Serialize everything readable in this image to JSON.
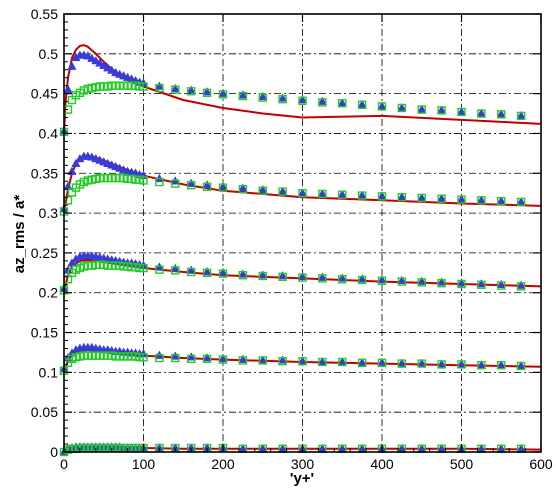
{
  "chart_data": {
    "type": "scatter",
    "title": "",
    "xlabel": "'y+'",
    "ylabel": "az_rms / a*",
    "xlim": [
      0,
      600
    ],
    "ylim": [
      0,
      0.55
    ],
    "xticks": [
      0,
      100,
      200,
      300,
      400,
      500,
      600
    ],
    "yticks": [
      0,
      0.05,
      0.1,
      0.15,
      0.2,
      0.25,
      0.3,
      0.35,
      0.4,
      0.45,
      0.5,
      0.55
    ],
    "grid": true,
    "legend": "none",
    "colors": {
      "line": "#c00000",
      "triangle": "#3a3ad6",
      "square": "#22cc22"
    },
    "series": [
      {
        "group": 1,
        "kind": "line",
        "x": [
          0,
          5,
          10,
          20,
          30,
          40,
          60,
          80,
          100,
          150,
          200,
          300,
          400,
          500,
          600
        ],
        "y": [
          0.0,
          0.003,
          0.004,
          0.005,
          0.005,
          0.005,
          0.005,
          0.005,
          0.005,
          0.004,
          0.004,
          0.004,
          0.004,
          0.004,
          0.003
        ]
      },
      {
        "group": 1,
        "kind": "triangle",
        "x": [
          0,
          5,
          10,
          15,
          20,
          25,
          30,
          35,
          40,
          45,
          50,
          55,
          60,
          65,
          70,
          75,
          80,
          85,
          90,
          95,
          100,
          120,
          140,
          160,
          180,
          200,
          225,
          250,
          275,
          300,
          325,
          350,
          375,
          400,
          425,
          450,
          475,
          500,
          525,
          550,
          575
        ],
        "y": [
          0.0,
          0.004,
          0.005,
          0.006,
          0.006,
          0.006,
          0.006,
          0.006,
          0.006,
          0.006,
          0.006,
          0.006,
          0.006,
          0.006,
          0.006,
          0.005,
          0.005,
          0.005,
          0.005,
          0.005,
          0.005,
          0.005,
          0.005,
          0.005,
          0.005,
          0.005,
          0.004,
          0.004,
          0.004,
          0.004,
          0.004,
          0.004,
          0.004,
          0.004,
          0.004,
          0.004,
          0.004,
          0.004,
          0.004,
          0.004,
          0.004
        ]
      },
      {
        "group": 1,
        "kind": "square",
        "x": [
          0,
          5,
          10,
          15,
          20,
          25,
          30,
          35,
          40,
          45,
          50,
          55,
          60,
          65,
          70,
          75,
          80,
          85,
          90,
          95,
          100,
          120,
          140,
          160,
          180,
          200,
          225,
          250,
          275,
          300,
          325,
          350,
          375,
          400,
          425,
          450,
          475,
          500,
          525,
          550,
          575
        ],
        "y": [
          0.0,
          0.003,
          0.004,
          0.004,
          0.005,
          0.005,
          0.005,
          0.005,
          0.005,
          0.005,
          0.005,
          0.005,
          0.005,
          0.005,
          0.005,
          0.005,
          0.005,
          0.005,
          0.005,
          0.005,
          0.005,
          0.005,
          0.005,
          0.005,
          0.005,
          0.005,
          0.004,
          0.004,
          0.004,
          0.004,
          0.004,
          0.004,
          0.004,
          0.004,
          0.004,
          0.004,
          0.004,
          0.004,
          0.004,
          0.004,
          0.004
        ]
      },
      {
        "group": 2,
        "kind": "line",
        "x": [
          0,
          5,
          10,
          20,
          30,
          40,
          60,
          80,
          100,
          150,
          200,
          300,
          400,
          500,
          600
        ],
        "y": [
          0.1,
          0.115,
          0.122,
          0.127,
          0.128,
          0.127,
          0.125,
          0.123,
          0.121,
          0.118,
          0.116,
          0.113,
          0.111,
          0.109,
          0.107
        ]
      },
      {
        "group": 2,
        "kind": "triangle",
        "x": [
          0,
          5,
          10,
          15,
          20,
          25,
          30,
          35,
          40,
          45,
          50,
          55,
          60,
          65,
          70,
          75,
          80,
          85,
          90,
          95,
          100,
          120,
          140,
          160,
          180,
          200,
          225,
          250,
          275,
          300,
          325,
          350,
          375,
          400,
          425,
          450,
          475,
          500,
          525,
          550,
          575
        ],
        "y": [
          0.104,
          0.118,
          0.124,
          0.128,
          0.13,
          0.131,
          0.131,
          0.131,
          0.13,
          0.129,
          0.128,
          0.128,
          0.127,
          0.126,
          0.126,
          0.125,
          0.125,
          0.124,
          0.124,
          0.123,
          0.123,
          0.121,
          0.12,
          0.119,
          0.118,
          0.117,
          0.116,
          0.115,
          0.115,
          0.114,
          0.113,
          0.113,
          0.112,
          0.112,
          0.111,
          0.111,
          0.11,
          0.11,
          0.109,
          0.109,
          0.108
        ]
      },
      {
        "group": 2,
        "kind": "square",
        "x": [
          0,
          5,
          10,
          15,
          20,
          25,
          30,
          35,
          40,
          45,
          50,
          55,
          60,
          65,
          70,
          75,
          80,
          85,
          90,
          95,
          100,
          120,
          140,
          160,
          180,
          200,
          225,
          250,
          275,
          300,
          325,
          350,
          375,
          400,
          425,
          450,
          475,
          500,
          525,
          550,
          575
        ],
        "y": [
          0.102,
          0.112,
          0.117,
          0.119,
          0.12,
          0.121,
          0.121,
          0.121,
          0.121,
          0.121,
          0.121,
          0.121,
          0.121,
          0.12,
          0.12,
          0.12,
          0.12,
          0.12,
          0.12,
          0.119,
          0.119,
          0.118,
          0.118,
          0.117,
          0.117,
          0.116,
          0.115,
          0.115,
          0.114,
          0.114,
          0.113,
          0.113,
          0.112,
          0.112,
          0.111,
          0.111,
          0.11,
          0.11,
          0.109,
          0.109,
          0.108
        ]
      },
      {
        "group": 3,
        "kind": "line",
        "x": [
          0,
          5,
          10,
          20,
          30,
          40,
          60,
          80,
          100,
          150,
          200,
          300,
          400,
          500,
          600
        ],
        "y": [
          0.2,
          0.222,
          0.233,
          0.24,
          0.241,
          0.24,
          0.237,
          0.234,
          0.231,
          0.226,
          0.222,
          0.218,
          0.214,
          0.211,
          0.208
        ]
      },
      {
        "group": 3,
        "kind": "triangle",
        "x": [
          0,
          5,
          10,
          15,
          20,
          25,
          30,
          35,
          40,
          45,
          50,
          55,
          60,
          65,
          70,
          75,
          80,
          85,
          90,
          95,
          100,
          120,
          140,
          160,
          180,
          200,
          225,
          250,
          275,
          300,
          325,
          350,
          375,
          400,
          425,
          450,
          475,
          500,
          525,
          550,
          575
        ],
        "y": [
          0.205,
          0.228,
          0.237,
          0.242,
          0.245,
          0.246,
          0.246,
          0.246,
          0.245,
          0.244,
          0.243,
          0.242,
          0.241,
          0.24,
          0.239,
          0.238,
          0.237,
          0.237,
          0.236,
          0.235,
          0.234,
          0.232,
          0.23,
          0.228,
          0.226,
          0.225,
          0.223,
          0.222,
          0.221,
          0.22,
          0.219,
          0.218,
          0.217,
          0.216,
          0.215,
          0.214,
          0.213,
          0.212,
          0.211,
          0.21,
          0.209
        ]
      },
      {
        "group": 3,
        "kind": "square",
        "x": [
          0,
          5,
          10,
          15,
          20,
          25,
          30,
          35,
          40,
          45,
          50,
          55,
          60,
          65,
          70,
          75,
          80,
          85,
          90,
          95,
          100,
          120,
          140,
          160,
          180,
          200,
          225,
          250,
          275,
          300,
          325,
          350,
          375,
          400,
          425,
          450,
          475,
          500,
          525,
          550,
          575
        ],
        "y": [
          0.203,
          0.217,
          0.225,
          0.229,
          0.231,
          0.233,
          0.234,
          0.234,
          0.235,
          0.235,
          0.235,
          0.234,
          0.234,
          0.234,
          0.234,
          0.233,
          0.233,
          0.232,
          0.232,
          0.231,
          0.231,
          0.229,
          0.228,
          0.226,
          0.225,
          0.224,
          0.222,
          0.221,
          0.22,
          0.219,
          0.218,
          0.217,
          0.216,
          0.215,
          0.214,
          0.213,
          0.212,
          0.211,
          0.21,
          0.209,
          0.208
        ]
      },
      {
        "group": 4,
        "kind": "line",
        "x": [
          0,
          5,
          10,
          15,
          20,
          30,
          40,
          60,
          80,
          100,
          150,
          200,
          300,
          400,
          500,
          600
        ],
        "y": [
          0.3,
          0.33,
          0.35,
          0.362,
          0.368,
          0.372,
          0.37,
          0.362,
          0.354,
          0.347,
          0.336,
          0.328,
          0.32,
          0.316,
          0.312,
          0.309
        ]
      },
      {
        "group": 4,
        "kind": "triangle",
        "x": [
          0,
          5,
          10,
          15,
          20,
          25,
          30,
          35,
          40,
          45,
          50,
          55,
          60,
          65,
          70,
          75,
          80,
          85,
          90,
          95,
          100,
          120,
          140,
          160,
          180,
          200,
          225,
          250,
          275,
          300,
          325,
          350,
          375,
          400,
          425,
          450,
          475,
          500,
          525,
          550,
          575
        ],
        "y": [
          0.305,
          0.333,
          0.352,
          0.362,
          0.368,
          0.371,
          0.371,
          0.37,
          0.368,
          0.366,
          0.364,
          0.362,
          0.36,
          0.358,
          0.356,
          0.354,
          0.352,
          0.351,
          0.35,
          0.348,
          0.347,
          0.343,
          0.34,
          0.337,
          0.335,
          0.333,
          0.331,
          0.329,
          0.327,
          0.325,
          0.324,
          0.323,
          0.322,
          0.321,
          0.32,
          0.319,
          0.318,
          0.317,
          0.316,
          0.315,
          0.314
        ]
      },
      {
        "group": 4,
        "kind": "square",
        "x": [
          0,
          5,
          10,
          15,
          20,
          25,
          30,
          35,
          40,
          45,
          50,
          55,
          60,
          65,
          70,
          75,
          80,
          85,
          90,
          95,
          100,
          120,
          140,
          160,
          180,
          200,
          225,
          250,
          275,
          300,
          325,
          350,
          375,
          400,
          425,
          450,
          475,
          500,
          525,
          550,
          575
        ],
        "y": [
          0.302,
          0.316,
          0.326,
          0.332,
          0.336,
          0.339,
          0.341,
          0.342,
          0.343,
          0.344,
          0.344,
          0.344,
          0.344,
          0.344,
          0.344,
          0.344,
          0.343,
          0.343,
          0.342,
          0.342,
          0.341,
          0.339,
          0.337,
          0.335,
          0.333,
          0.332,
          0.33,
          0.328,
          0.327,
          0.325,
          0.324,
          0.323,
          0.322,
          0.321,
          0.32,
          0.319,
          0.318,
          0.317,
          0.316,
          0.315,
          0.314
        ]
      },
      {
        "group": 5,
        "kind": "line",
        "x": [
          0,
          2,
          5,
          10,
          15,
          20,
          25,
          30,
          40,
          50,
          60,
          80,
          100,
          150,
          200,
          250,
          300,
          400,
          500,
          600
        ],
        "y": [
          0.4,
          0.44,
          0.47,
          0.495,
          0.505,
          0.51,
          0.511,
          0.509,
          0.5,
          0.49,
          0.481,
          0.468,
          0.459,
          0.442,
          0.432,
          0.425,
          0.42,
          0.422,
          0.417,
          0.412
        ]
      },
      {
        "group": 5,
        "kind": "triangle",
        "x": [
          0,
          5,
          10,
          15,
          20,
          25,
          30,
          35,
          40,
          45,
          50,
          55,
          60,
          65,
          70,
          75,
          80,
          85,
          90,
          95,
          100,
          120,
          140,
          160,
          180,
          200,
          225,
          250,
          275,
          300,
          325,
          350,
          375,
          400,
          425,
          450,
          475,
          500,
          525,
          550,
          575
        ],
        "y": [
          0.403,
          0.455,
          0.484,
          0.495,
          0.498,
          0.498,
          0.497,
          0.494,
          0.491,
          0.488,
          0.485,
          0.482,
          0.479,
          0.476,
          0.474,
          0.472,
          0.47,
          0.468,
          0.466,
          0.464,
          0.463,
          0.459,
          0.456,
          0.454,
          0.452,
          0.45,
          0.448,
          0.446,
          0.444,
          0.442,
          0.44,
          0.438,
          0.436,
          0.434,
          0.432,
          0.43,
          0.429,
          0.427,
          0.425,
          0.424,
          0.422
        ]
      },
      {
        "group": 5,
        "kind": "square",
        "x": [
          0,
          5,
          10,
          15,
          20,
          25,
          30,
          35,
          40,
          45,
          50,
          55,
          60,
          65,
          70,
          75,
          80,
          85,
          90,
          95,
          100,
          120,
          140,
          160,
          180,
          200,
          225,
          250,
          275,
          300,
          325,
          350,
          375,
          400,
          425,
          450,
          475,
          500,
          525,
          550,
          575
        ],
        "y": [
          0.402,
          0.43,
          0.442,
          0.448,
          0.451,
          0.454,
          0.456,
          0.457,
          0.458,
          0.459,
          0.459,
          0.459,
          0.46,
          0.46,
          0.46,
          0.46,
          0.46,
          0.46,
          0.46,
          0.459,
          0.459,
          0.457,
          0.455,
          0.453,
          0.451,
          0.449,
          0.447,
          0.445,
          0.443,
          0.441,
          0.439,
          0.438,
          0.436,
          0.434,
          0.432,
          0.43,
          0.429,
          0.427,
          0.425,
          0.424,
          0.422
        ]
      }
    ]
  }
}
